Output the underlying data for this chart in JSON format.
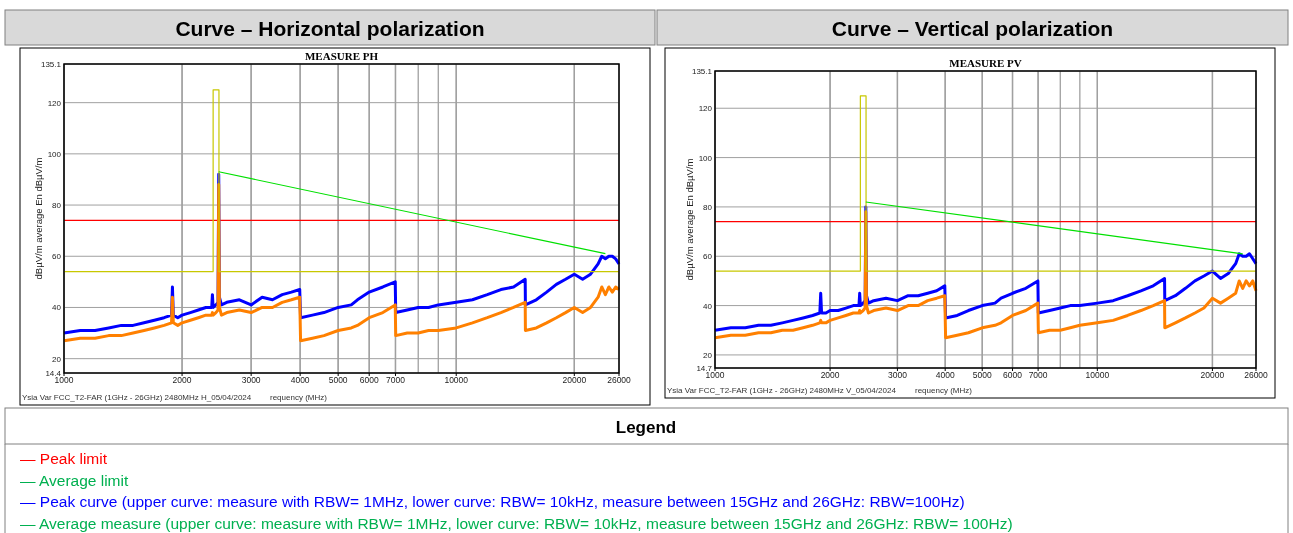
{
  "chart_data": [
    {
      "type": "line",
      "title": "Curve – Horizontal polarization",
      "subtitle": "MEASURE PH",
      "ylabel": "dBµV/m average En dBµV/m",
      "xlabel": "requency (MHz)",
      "annotations": [
        "Ysia Var FCC_T2-FAR (1GHz - 26GHz) 2480MHz H_05/04/2024"
      ],
      "log": "x",
      "grid": true,
      "xlim": [
        1000,
        26000
      ],
      "ylim": [
        14.4,
        135.1
      ],
      "xticks": [
        1000,
        2000,
        3000,
        4000,
        5000,
        6000,
        7000,
        10000,
        20000,
        26000
      ],
      "yticks": [
        14.4,
        20,
        40,
        60,
        80,
        100,
        120,
        135.1
      ],
      "ref_lines": [
        {
          "axis": "y",
          "value": 74,
          "color": "#ff0000"
        }
      ],
      "x": [
        1000,
        1100,
        1200,
        1300,
        1400,
        1500,
        1600,
        1700,
        1800,
        1880,
        1890,
        1900,
        1950,
        2000,
        2100,
        2200,
        2300,
        2380,
        2390,
        2400,
        2440,
        2470,
        2480,
        2490,
        2520,
        2600,
        2800,
        3000,
        3200,
        3400,
        3600,
        3800,
        3990,
        4010,
        4300,
        4600,
        5000,
        5400,
        5600,
        6000,
        6500,
        6990,
        7010,
        7500,
        8000,
        8500,
        9000,
        10000,
        11000,
        12000,
        13000,
        14000,
        14990,
        15010,
        16000,
        17000,
        18000,
        19000,
        20000,
        21000,
        22000,
        23000,
        23500,
        24000,
        24500,
        25000,
        25500,
        26000
      ],
      "series": [
        {
          "color": "#0000ff",
          "values": [
            30,
            31,
            31,
            32,
            33,
            33,
            34,
            35,
            36,
            37,
            48,
            37,
            36,
            37,
            38,
            39,
            40,
            40,
            45,
            40,
            41,
            42,
            92,
            44,
            41,
            42,
            43,
            41,
            44,
            43,
            45,
            46,
            47,
            36,
            37,
            38,
            40,
            41,
            43,
            46,
            48,
            50,
            38,
            39,
            40,
            40,
            41,
            42,
            43,
            45,
            47,
            48,
            51,
            41,
            43,
            46,
            49,
            51,
            53,
            51,
            53,
            57,
            60,
            59,
            60,
            60,
            59,
            57
          ]
        },
        {
          "color": "#ff8000",
          "values": [
            27,
            28,
            28,
            29,
            29,
            30,
            31,
            32,
            33,
            34,
            44,
            34,
            33,
            34,
            35,
            36,
            37,
            37,
            38,
            37,
            38,
            39,
            88,
            40,
            37,
            38,
            39,
            38,
            40,
            40,
            42,
            43,
            44,
            27,
            28,
            29,
            31,
            32,
            33,
            36,
            38,
            41,
            29,
            30,
            30,
            31,
            31,
            32,
            34,
            36,
            38,
            40,
            42,
            31,
            32,
            34,
            36,
            38,
            40,
            38,
            40,
            44,
            48,
            45,
            48,
            46,
            48,
            47
          ]
        },
        {
          "color": "#c8c800",
          "x": [
            1000,
            2400,
            2400,
            2483.5,
            2483.5,
            26000
          ],
          "values": [
            54,
            54,
            125,
            125,
            54,
            54
          ]
        },
        {
          "color": "#00e000",
          "x": [
            2480,
            24000
          ],
          "values": [
            93,
            61
          ]
        }
      ]
    },
    {
      "type": "line",
      "title": "Curve – Vertical polarization",
      "subtitle": "MEASURE PV",
      "ylabel": "dBµV/m average En dBµV/m",
      "xlabel": "requency (MHz)",
      "annotations": [
        "Ysia Var FCC_T2-FAR (1GHz - 26GHz) 2480MHz V_05/04/2024"
      ],
      "log": "x",
      "grid": true,
      "xlim": [
        1000,
        26000
      ],
      "ylim": [
        14.7,
        135.1
      ],
      "xticks": [
        1000,
        2000,
        3000,
        4000,
        5000,
        6000,
        7000,
        10000,
        20000,
        26000
      ],
      "yticks": [
        14.7,
        20,
        40,
        60,
        80,
        100,
        120,
        135.1
      ],
      "ref_lines": [
        {
          "axis": "y",
          "value": 74,
          "color": "#ff0000"
        }
      ],
      "x": [
        1000,
        1100,
        1200,
        1300,
        1400,
        1500,
        1600,
        1700,
        1800,
        1880,
        1890,
        1900,
        1950,
        2000,
        2100,
        2200,
        2300,
        2380,
        2390,
        2400,
        2440,
        2470,
        2480,
        2490,
        2520,
        2600,
        2800,
        3000,
        3200,
        3400,
        3600,
        3800,
        3990,
        4010,
        4300,
        4600,
        5000,
        5400,
        5600,
        6000,
        6500,
        6990,
        7010,
        7500,
        8000,
        8500,
        9000,
        10000,
        11000,
        12000,
        13000,
        14000,
        14990,
        15010,
        16000,
        17000,
        18000,
        19000,
        20000,
        21000,
        22000,
        23000,
        23500,
        24000,
        24500,
        25000,
        25500,
        26000
      ],
      "series": [
        {
          "color": "#0000ff",
          "values": [
            30,
            31,
            31,
            32,
            32,
            33,
            34,
            35,
            36,
            37,
            45,
            37,
            37,
            38,
            38,
            39,
            40,
            40,
            45,
            40,
            41,
            42,
            80,
            44,
            41,
            42,
            43,
            42,
            44,
            44,
            45,
            46,
            48,
            35,
            36,
            38,
            40,
            41,
            43,
            45,
            47,
            50,
            37,
            38,
            39,
            40,
            40,
            41,
            42,
            44,
            46,
            48,
            51,
            42,
            44,
            47,
            50,
            52,
            54,
            51,
            53,
            57,
            61,
            60,
            60,
            61,
            59,
            57
          ]
        },
        {
          "color": "#ff8000",
          "values": [
            27,
            28,
            28,
            29,
            29,
            30,
            30,
            31,
            32,
            33,
            34,
            33,
            33,
            34,
            35,
            36,
            37,
            37,
            38,
            37,
            38,
            39,
            78,
            40,
            37,
            38,
            39,
            38,
            40,
            40,
            42,
            43,
            44,
            27,
            28,
            29,
            31,
            32,
            33,
            36,
            38,
            41,
            29,
            30,
            30,
            31,
            32,
            33,
            34,
            36,
            38,
            40,
            42,
            31,
            33,
            35,
            37,
            39,
            43,
            41,
            43,
            45,
            50,
            47,
            50,
            48,
            50,
            46
          ]
        },
        {
          "color": "#c8c800",
          "x": [
            1000,
            2400,
            2400,
            2483.5,
            2483.5,
            26000
          ],
          "values": [
            54,
            54,
            125,
            125,
            54,
            54
          ]
        },
        {
          "color": "#00e000",
          "x": [
            2480,
            24000
          ],
          "values": [
            82,
            61
          ]
        }
      ]
    },
    {
      "type": "other",
      "title": "Legend",
      "annotations": [
        "— Peak limit",
        "— Average limit",
        "— Peak curve (upper curve: measure with RBW= 1MHz, lower curve: RBW= 10kHz, measure between 15GHz and 26GHz: RBW=100Hz)",
        "— Average measure (upper curve: measure with RBW= 1MHz, lower curve: RBW= 10kHz, measure between 15GHz and 26GHz: RBW= 100Hz)"
      ],
      "colors": [
        "#ff0000",
        "#00b050",
        "#0000ff",
        "#00b050"
      ]
    }
  ]
}
